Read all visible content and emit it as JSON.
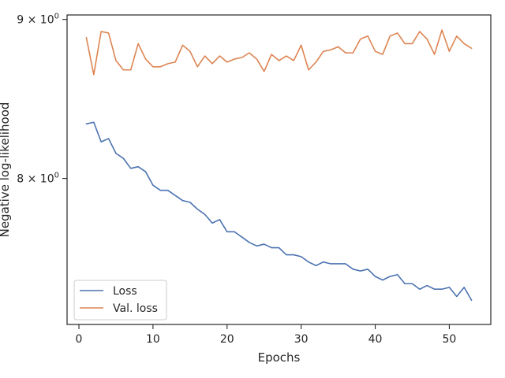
{
  "chart_data": {
    "type": "line",
    "xlabel": "Epochs",
    "ylabel": "Negative log-likelihood",
    "xlim": [
      -1.6,
      55.6
    ],
    "ylim": [
      7.18,
      9.03
    ],
    "yscale": "log",
    "x_ticks": [
      0,
      10,
      20,
      30,
      40,
      50
    ],
    "x_tick_labels": [
      "0",
      "10",
      "20",
      "30",
      "40",
      "50"
    ],
    "y_ticks": [
      8,
      9
    ],
    "y_tick_base": [
      "8 × 10",
      "9 × 10"
    ],
    "y_tick_exp": [
      "0",
      "0"
    ],
    "grid": false,
    "legend_position": "lower-left",
    "series": [
      {
        "name": "Loss",
        "color": "#4c72b0",
        "x": [
          1,
          2,
          3,
          4,
          5,
          6,
          7,
          8,
          9,
          10,
          11,
          12,
          13,
          14,
          15,
          16,
          17,
          18,
          19,
          20,
          21,
          22,
          23,
          24,
          25,
          26,
          27,
          28,
          29,
          30,
          31,
          32,
          33,
          34,
          35,
          36,
          37,
          38,
          39,
          40,
          41,
          42,
          43,
          44,
          45,
          46,
          47,
          48,
          49,
          50,
          51,
          52,
          53
        ],
        "values": [
          8.33,
          8.34,
          8.22,
          8.24,
          8.15,
          8.12,
          8.06,
          8.07,
          8.04,
          7.96,
          7.93,
          7.93,
          7.9,
          7.87,
          7.86,
          7.82,
          7.79,
          7.74,
          7.76,
          7.69,
          7.69,
          7.66,
          7.63,
          7.61,
          7.62,
          7.6,
          7.6,
          7.56,
          7.56,
          7.55,
          7.52,
          7.5,
          7.52,
          7.51,
          7.51,
          7.51,
          7.48,
          7.47,
          7.48,
          7.44,
          7.42,
          7.44,
          7.45,
          7.4,
          7.4,
          7.37,
          7.39,
          7.37,
          7.37,
          7.38,
          7.33,
          7.38,
          7.31
        ]
      },
      {
        "name": "Val. loss",
        "color": "#dd8452",
        "x": [
          1,
          2,
          3,
          4,
          5,
          6,
          7,
          8,
          9,
          10,
          11,
          12,
          13,
          14,
          15,
          16,
          17,
          18,
          19,
          20,
          21,
          22,
          23,
          24,
          25,
          26,
          27,
          28,
          29,
          30,
          31,
          32,
          33,
          34,
          35,
          36,
          37,
          38,
          39,
          40,
          41,
          42,
          43,
          44,
          45,
          46,
          47,
          48,
          49,
          50,
          51,
          52,
          53
        ],
        "values": [
          8.88,
          8.64,
          8.92,
          8.91,
          8.73,
          8.67,
          8.67,
          8.84,
          8.74,
          8.69,
          8.69,
          8.71,
          8.72,
          8.83,
          8.79,
          8.69,
          8.76,
          8.71,
          8.76,
          8.72,
          8.74,
          8.75,
          8.78,
          8.74,
          8.66,
          8.77,
          8.73,
          8.76,
          8.73,
          8.83,
          8.67,
          8.72,
          8.79,
          8.8,
          8.82,
          8.78,
          8.78,
          8.87,
          8.89,
          8.79,
          8.77,
          8.89,
          8.91,
          8.84,
          8.84,
          8.92,
          8.87,
          8.77,
          8.93,
          8.79,
          8.89,
          8.84,
          8.81
        ]
      }
    ]
  }
}
